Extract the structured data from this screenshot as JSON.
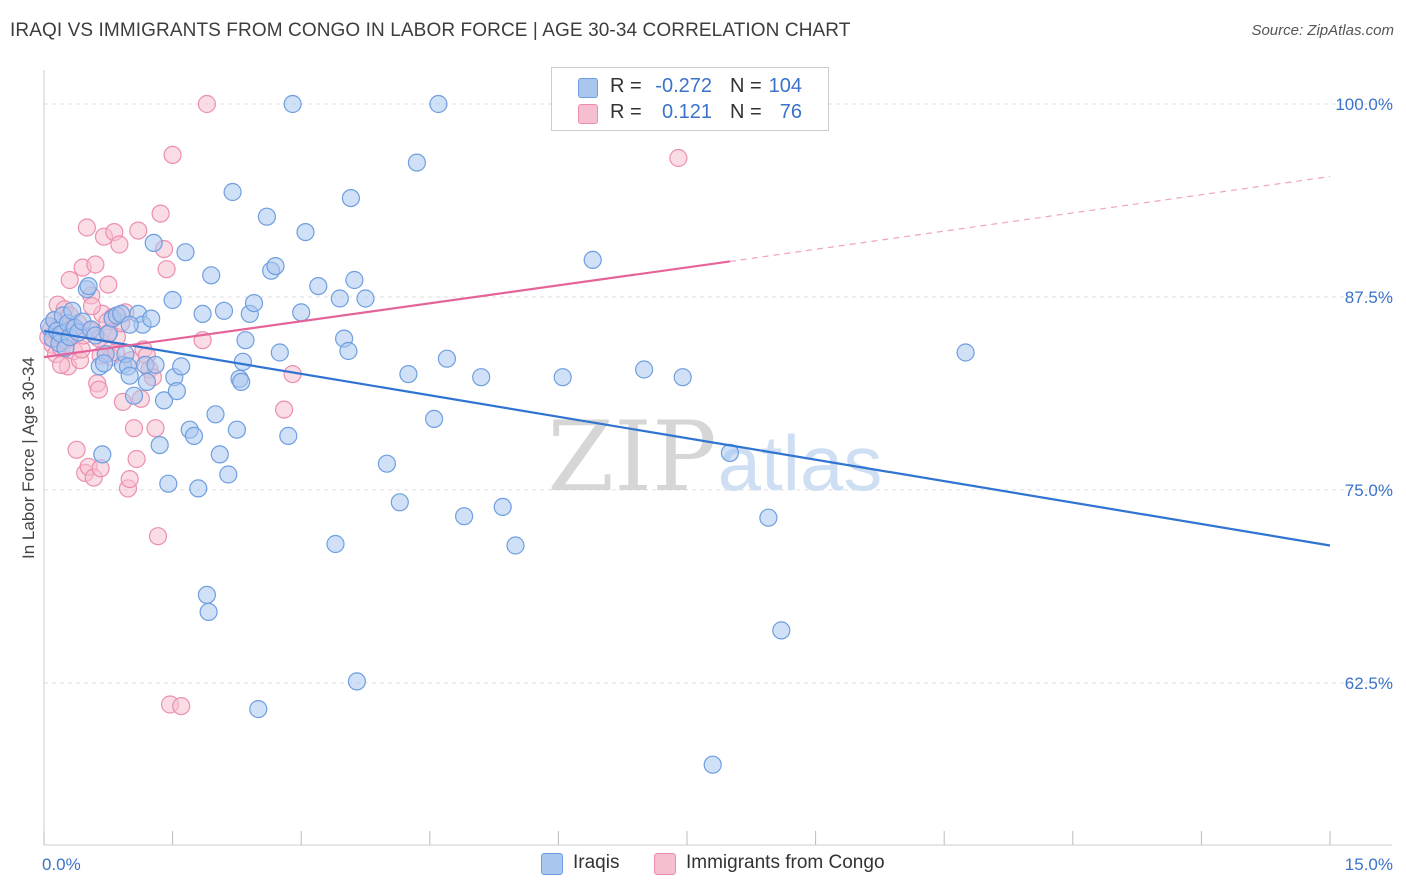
{
  "title": "IRAQI VS IMMIGRANTS FROM CONGO IN LABOR FORCE | AGE 30-34 CORRELATION CHART",
  "source": "Source: ZipAtlas.com",
  "watermark": {
    "zip": "ZIP",
    "atlas": "atlas"
  },
  "colors": {
    "blue_fill": "#a9c6ee",
    "blue_stroke": "#6f9ee0",
    "blue_line": "#2f74d0",
    "pink_fill": "#f6bfd0",
    "pink_stroke": "#ec8fae",
    "pink_line": "#e4649a",
    "axis_text": "#3a73c8",
    "grid": "#dddddd"
  },
  "legend": [
    {
      "swatch": "blue",
      "r_label": "R =",
      "r_value": "-0.272",
      "n_label": "N =",
      "n_value": "104"
    },
    {
      "swatch": "pink",
      "r_label": "R =",
      "r_value": "0.121",
      "n_label": "N =",
      "n_value": "76"
    }
  ],
  "bottom_legend": [
    {
      "swatch": "blue",
      "label": "Iraqis"
    },
    {
      "swatch": "pink",
      "label": "Immigrants from Congo"
    }
  ],
  "chart_data": {
    "type": "scatter",
    "title": "IRAQI VS IMMIGRANTS FROM CONGO IN LABOR FORCE | AGE 30-34 CORRELATION CHART",
    "xlabel": "",
    "ylabel": "In Labor Force | Age 30-34",
    "xlim": [
      0,
      15
    ],
    "ylim": [
      52,
      102.2
    ],
    "x_tick_labels": [
      {
        "value": 0,
        "label": "0.0%"
      },
      {
        "value": 15,
        "label": "15.0%"
      }
    ],
    "y_tick_labels": [
      {
        "value": 100,
        "label": "100.0%"
      },
      {
        "value": 87.5,
        "label": "87.5%"
      },
      {
        "value": 75,
        "label": "75.0%"
      },
      {
        "value": 62.5,
        "label": "62.5%"
      }
    ],
    "grid": true,
    "series": [
      {
        "name": "Iraqis",
        "color": "blue",
        "r": -0.272,
        "n": 104,
        "trend": {
          "x": [
            0,
            15
          ],
          "y": [
            85.3,
            71.4
          ]
        },
        "points": [
          [
            0.06,
            85.6
          ],
          [
            0.1,
            84.8
          ],
          [
            0.12,
            86.0
          ],
          [
            0.15,
            85.3
          ],
          [
            0.18,
            84.5
          ],
          [
            0.2,
            85.1
          ],
          [
            0.22,
            86.3
          ],
          [
            0.25,
            84.2
          ],
          [
            0.28,
            85.8
          ],
          [
            0.3,
            84.9
          ],
          [
            0.33,
            86.6
          ],
          [
            0.36,
            85.5
          ],
          [
            0.4,
            85.2
          ],
          [
            0.45,
            85.9
          ],
          [
            0.5,
            88.0
          ],
          [
            0.52,
            88.2
          ],
          [
            0.55,
            85.4
          ],
          [
            0.6,
            85.0
          ],
          [
            0.65,
            83.0
          ],
          [
            0.68,
            77.3
          ],
          [
            0.72,
            83.8
          ],
          [
            0.75,
            85.1
          ],
          [
            0.8,
            86.1
          ],
          [
            0.85,
            86.3
          ],
          [
            0.9,
            86.4
          ],
          [
            0.92,
            83.1
          ],
          [
            0.95,
            83.8
          ],
          [
            0.98,
            83.0
          ],
          [
            1.0,
            82.4
          ],
          [
            1.05,
            81.1
          ],
          [
            1.1,
            86.4
          ],
          [
            1.15,
            85.7
          ],
          [
            1.18,
            83.1
          ],
          [
            1.2,
            82.0
          ],
          [
            1.25,
            86.1
          ],
          [
            1.28,
            91.0
          ],
          [
            1.3,
            83.1
          ],
          [
            1.35,
            77.9
          ],
          [
            1.4,
            80.8
          ],
          [
            1.45,
            75.4
          ],
          [
            1.5,
            87.3
          ],
          [
            1.52,
            82.3
          ],
          [
            1.55,
            81.4
          ],
          [
            1.6,
            83.0
          ],
          [
            1.65,
            90.4
          ],
          [
            1.7,
            78.9
          ],
          [
            1.75,
            78.5
          ],
          [
            1.8,
            75.1
          ],
          [
            1.85,
            86.4
          ],
          [
            1.9,
            68.2
          ],
          [
            1.92,
            67.1
          ],
          [
            1.95,
            88.9
          ],
          [
            2.0,
            79.9
          ],
          [
            2.05,
            77.3
          ],
          [
            2.1,
            86.6
          ],
          [
            2.15,
            76.0
          ],
          [
            2.2,
            94.3
          ],
          [
            2.25,
            78.9
          ],
          [
            2.28,
            82.2
          ],
          [
            2.3,
            82.0
          ],
          [
            2.32,
            83.3
          ],
          [
            2.35,
            84.7
          ],
          [
            2.4,
            86.4
          ],
          [
            2.45,
            87.1
          ],
          [
            2.5,
            60.8
          ],
          [
            2.6,
            92.7
          ],
          [
            2.65,
            89.2
          ],
          [
            2.7,
            89.5
          ],
          [
            2.75,
            83.9
          ],
          [
            2.85,
            78.5
          ],
          [
            2.9,
            100.0
          ],
          [
            3.0,
            86.5
          ],
          [
            3.05,
            91.7
          ],
          [
            3.2,
            88.2
          ],
          [
            3.4,
            71.5
          ],
          [
            3.45,
            87.4
          ],
          [
            3.5,
            84.8
          ],
          [
            3.55,
            84.0
          ],
          [
            3.58,
            93.9
          ],
          [
            3.62,
            88.6
          ],
          [
            3.65,
            62.6
          ],
          [
            3.75,
            87.4
          ],
          [
            4.0,
            76.7
          ],
          [
            4.15,
            74.2
          ],
          [
            4.25,
            82.5
          ],
          [
            4.35,
            96.2
          ],
          [
            4.55,
            79.6
          ],
          [
            4.6,
            100.0
          ],
          [
            4.7,
            83.5
          ],
          [
            4.9,
            73.3
          ],
          [
            5.1,
            82.3
          ],
          [
            5.35,
            73.9
          ],
          [
            5.5,
            71.4
          ],
          [
            6.05,
            82.3
          ],
          [
            6.4,
            89.9
          ],
          [
            7.0,
            82.8
          ],
          [
            7.45,
            82.3
          ],
          [
            7.8,
            57.2
          ],
          [
            8.0,
            77.4
          ],
          [
            8.45,
            73.2
          ],
          [
            8.6,
            65.9
          ],
          [
            10.75,
            83.9
          ],
          [
            1.0,
            85.7
          ],
          [
            0.7,
            83.2
          ]
        ]
      },
      {
        "name": "Immigrants from Congo",
        "color": "pink",
        "r": 0.121,
        "n": 76,
        "trend": {
          "x": [
            0,
            8
          ],
          "y": [
            83.6,
            89.8
          ]
        },
        "trend_dashed": {
          "x": [
            8,
            15
          ],
          "y": [
            89.8,
            95.3
          ]
        },
        "points": [
          [
            0.05,
            84.9
          ],
          [
            0.08,
            85.4
          ],
          [
            0.1,
            84.4
          ],
          [
            0.12,
            86.0
          ],
          [
            0.14,
            83.8
          ],
          [
            0.16,
            87.0
          ],
          [
            0.18,
            85.0
          ],
          [
            0.2,
            84.2
          ],
          [
            0.22,
            85.6
          ],
          [
            0.24,
            86.7
          ],
          [
            0.26,
            84.7
          ],
          [
            0.28,
            83.0
          ],
          [
            0.3,
            86.3
          ],
          [
            0.32,
            85.2
          ],
          [
            0.35,
            84.0
          ],
          [
            0.38,
            77.6
          ],
          [
            0.4,
            85.8
          ],
          [
            0.42,
            83.4
          ],
          [
            0.45,
            89.4
          ],
          [
            0.48,
            76.1
          ],
          [
            0.5,
            92.0
          ],
          [
            0.52,
            76.5
          ],
          [
            0.55,
            87.6
          ],
          [
            0.58,
            75.8
          ],
          [
            0.6,
            89.6
          ],
          [
            0.62,
            81.9
          ],
          [
            0.64,
            81.5
          ],
          [
            0.66,
            76.4
          ],
          [
            0.68,
            86.4
          ],
          [
            0.7,
            91.4
          ],
          [
            0.72,
            84.1
          ],
          [
            0.75,
            88.3
          ],
          [
            0.78,
            83.6
          ],
          [
            0.8,
            86.2
          ],
          [
            0.82,
            91.7
          ],
          [
            0.85,
            84.9
          ],
          [
            0.88,
            90.9
          ],
          [
            0.9,
            85.8
          ],
          [
            0.92,
            80.7
          ],
          [
            0.95,
            86.5
          ],
          [
            0.98,
            75.1
          ],
          [
            1.0,
            75.7
          ],
          [
            1.02,
            83.4
          ],
          [
            1.05,
            79.0
          ],
          [
            1.08,
            77.0
          ],
          [
            1.1,
            91.8
          ],
          [
            1.13,
            80.9
          ],
          [
            1.16,
            84.1
          ],
          [
            1.2,
            83.7
          ],
          [
            1.23,
            82.8
          ],
          [
            1.27,
            82.3
          ],
          [
            1.3,
            79.0
          ],
          [
            1.33,
            72.0
          ],
          [
            1.36,
            92.9
          ],
          [
            1.4,
            90.6
          ],
          [
            1.43,
            89.3
          ],
          [
            1.47,
            61.1
          ],
          [
            1.5,
            96.7
          ],
          [
            1.6,
            61.0
          ],
          [
            1.85,
            84.7
          ],
          [
            1.9,
            100.0
          ],
          [
            2.8,
            80.2
          ],
          [
            2.9,
            82.5
          ],
          [
            7.4,
            96.5
          ],
          [
            0.34,
            85.5
          ],
          [
            0.44,
            84.1
          ],
          [
            0.54,
            85.3
          ],
          [
            0.64,
            84.8
          ],
          [
            0.74,
            85.9
          ],
          [
            0.84,
            83.9
          ],
          [
            0.2,
            83.1
          ],
          [
            0.3,
            88.6
          ],
          [
            0.46,
            85.0
          ],
          [
            0.56,
            86.9
          ],
          [
            0.66,
            83.7
          ],
          [
            0.76,
            85.2
          ]
        ]
      }
    ]
  }
}
